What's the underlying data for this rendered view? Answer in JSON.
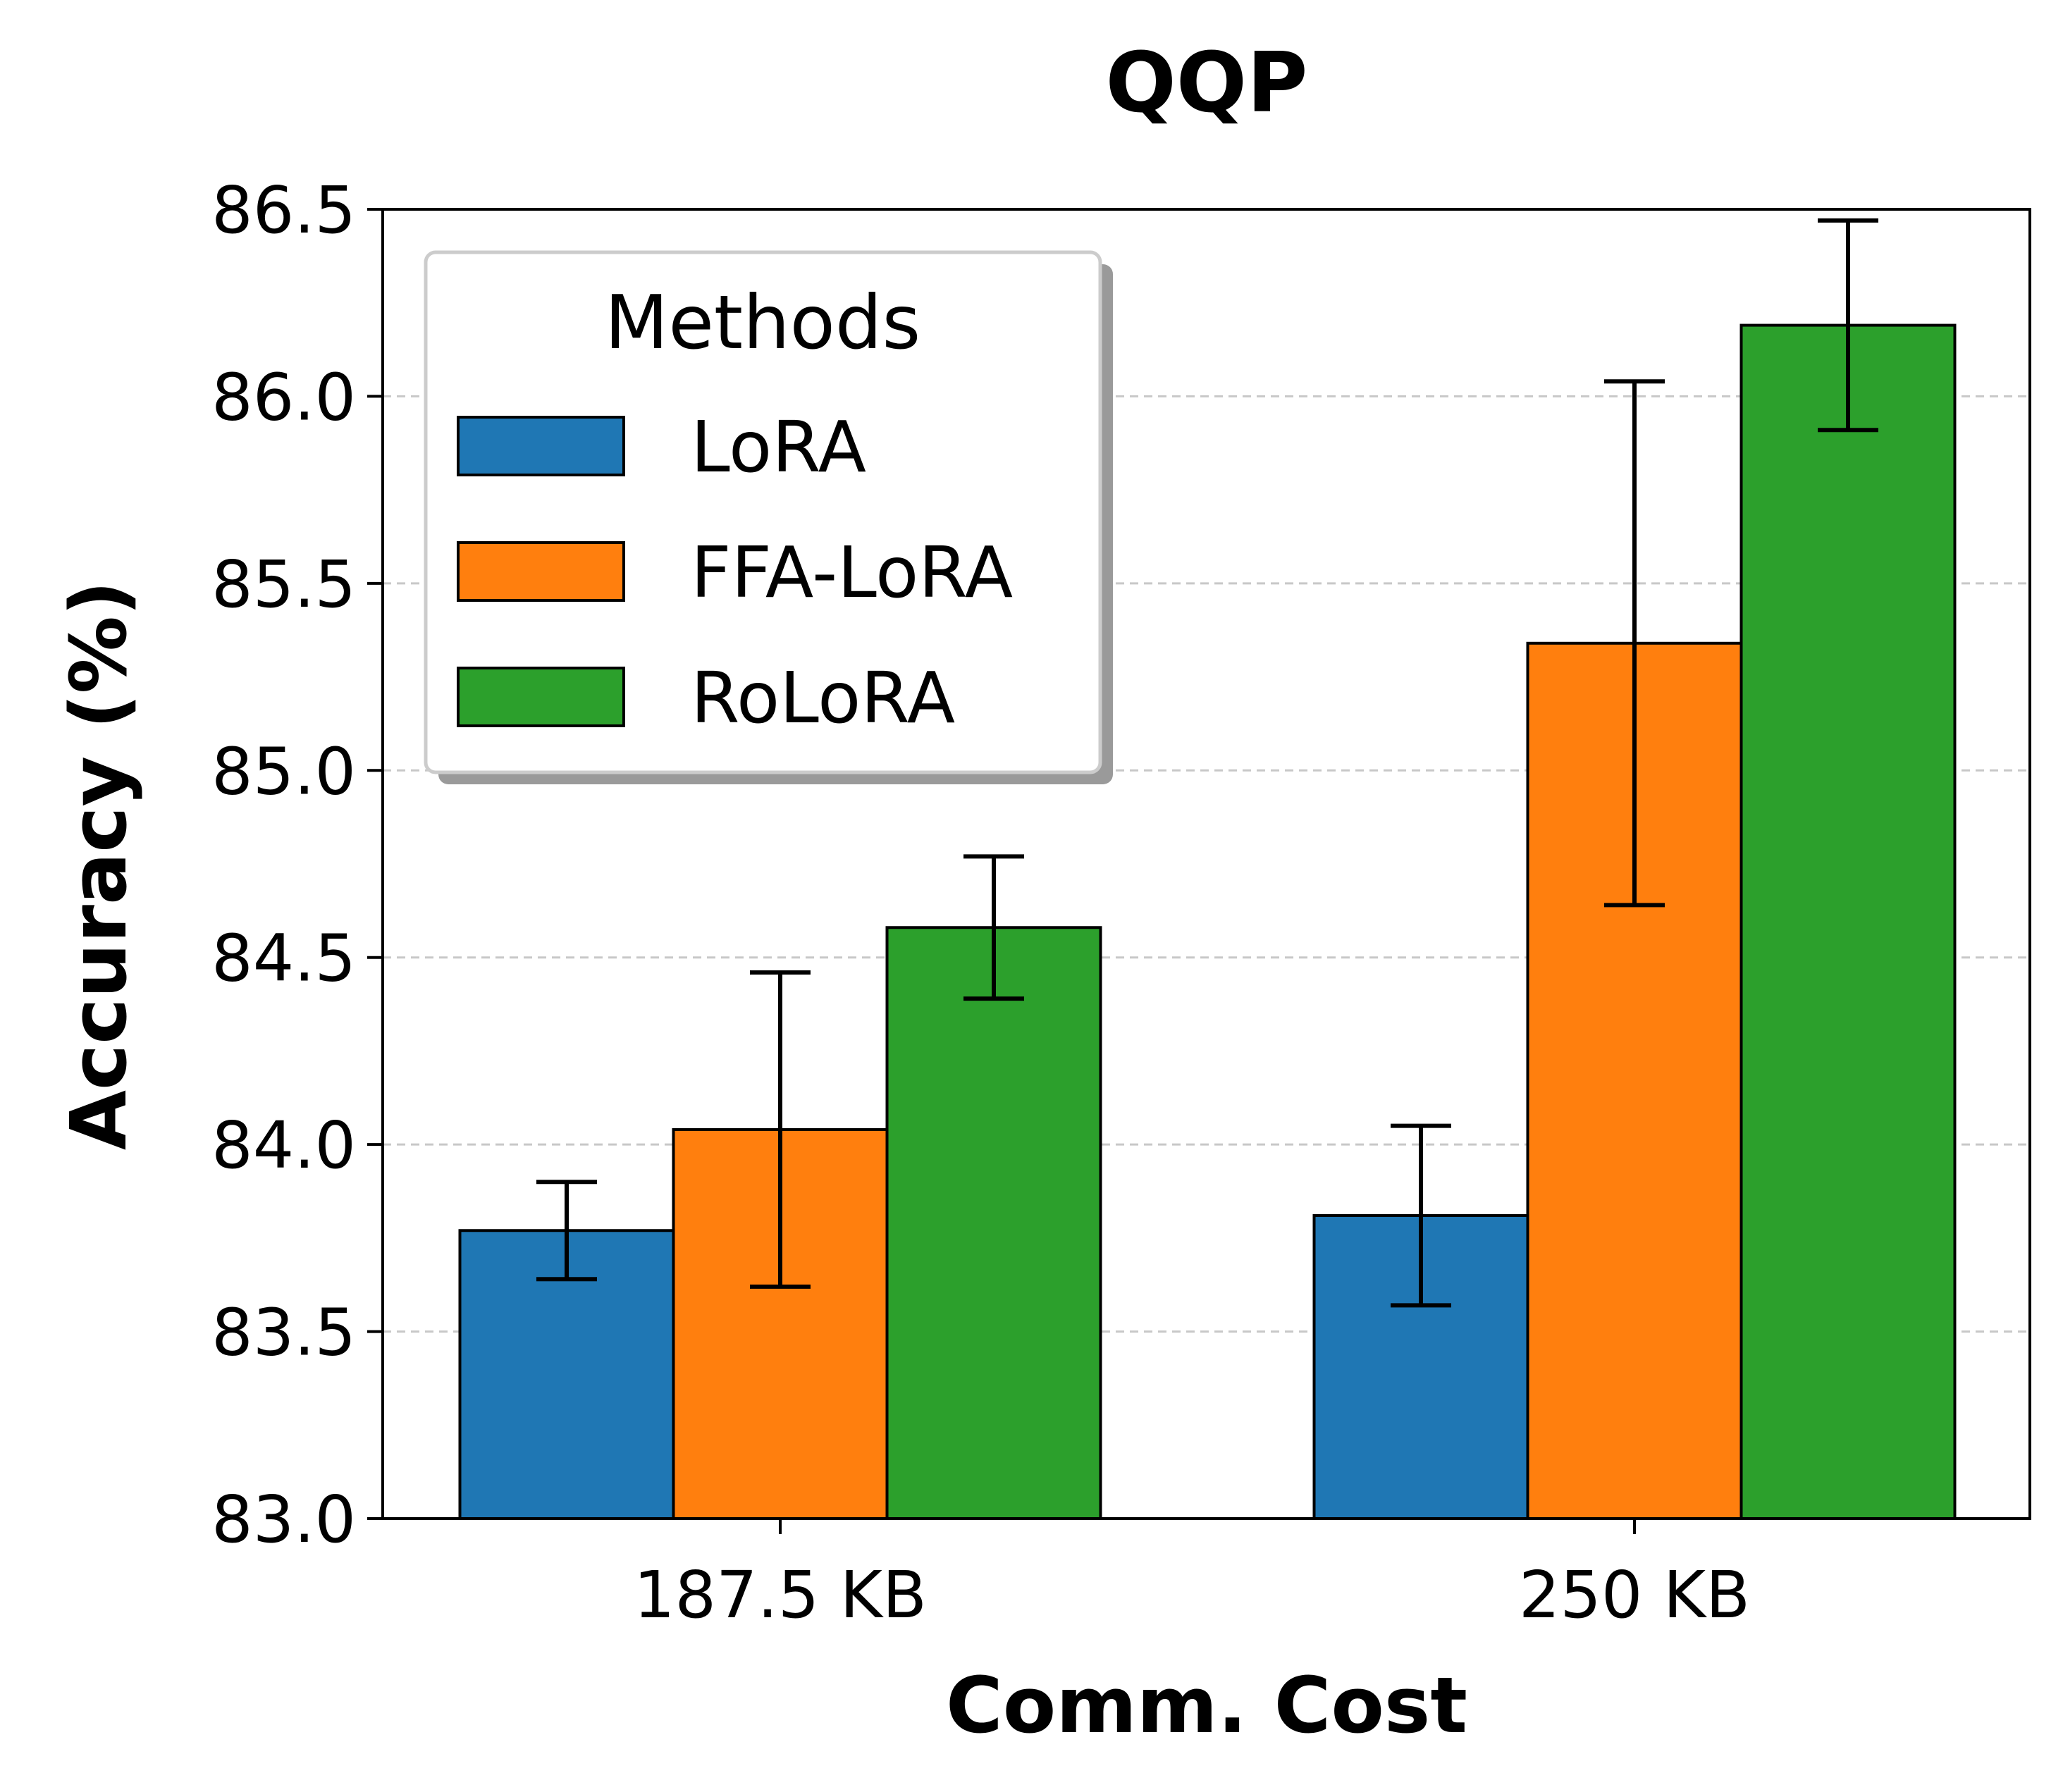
{
  "chart_data": {
    "type": "bar",
    "title": "QQP",
    "xlabel": "Comm. Cost",
    "ylabel": "Accuracy (%)",
    "categories": [
      "187.5 KB",
      "250 KB"
    ],
    "ylim": [
      83.0,
      86.5
    ],
    "yticks": [
      "83.0",
      "83.5",
      "84.0",
      "84.5",
      "85.0",
      "85.5",
      "86.0",
      "86.5"
    ],
    "grid": "y, dashed",
    "legend": {
      "title": "Methods",
      "placement": "top-left"
    },
    "series": [
      {
        "name": "LoRA",
        "color": "#1f77b4",
        "values": [
          83.77,
          83.81
        ],
        "errors": [
          0.13,
          0.24
        ]
      },
      {
        "name": "FFA-LoRA",
        "color": "#ff7f0e",
        "values": [
          84.04,
          85.34
        ],
        "errors": [
          0.42,
          0.7
        ]
      },
      {
        "name": "RoLoRA",
        "color": "#2ca02c",
        "values": [
          84.58,
          86.19
        ],
        "errors": [
          0.19,
          0.28
        ]
      }
    ]
  }
}
